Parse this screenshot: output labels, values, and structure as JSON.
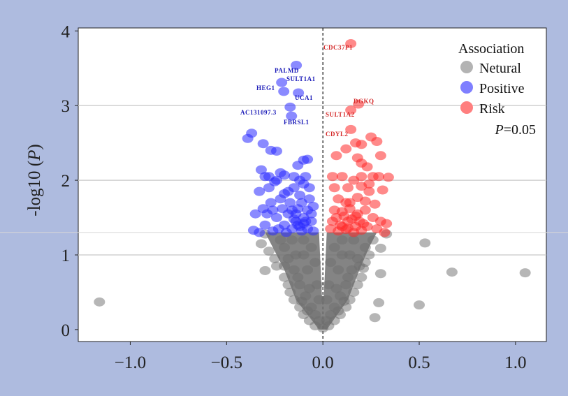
{
  "chart_data": {
    "type": "scatter",
    "title": "",
    "xlabel": "",
    "ylabel_prefix": "-log10 (",
    "ylabel_var": "P",
    "ylabel_suffix": ")",
    "xlim": [
      -1.27,
      1.16
    ],
    "ylim": [
      -0.16,
      4.04
    ],
    "xticks": [
      -1.0,
      -0.5,
      0.0,
      0.5,
      1.0
    ],
    "xtick_labels": [
      "−1.0",
      "−0.5",
      "0.0",
      "0.5",
      "1.0"
    ],
    "yticks": [
      0,
      1,
      2,
      3,
      4
    ],
    "ytick_labels": [
      "0",
      "1",
      "2",
      "3",
      "4"
    ],
    "grid": "horizontal",
    "threshold_y": 1.301,
    "vline_x": 0,
    "legend": {
      "title": "Association",
      "placement": "top-right",
      "entries": [
        {
          "name": "Netural",
          "color": "#b3b3b3"
        },
        {
          "name": "Positive",
          "color": "#7f7fff"
        },
        {
          "name": "Risk",
          "color": "#ff7f7f"
        }
      ],
      "threshold_note_var": "P",
      "threshold_note_value": "=0.05"
    },
    "colors": {
      "Netural": "#6e6e6e",
      "Positive": "#2a2aff",
      "Risk": "#ff2a2a",
      "positive_label": "#1c1cb8",
      "risk_label": "#d42a2a"
    },
    "labeled_points": [
      {
        "label": "CDC37P1",
        "x": 0.145,
        "y": 3.83,
        "group": "Risk"
      },
      {
        "label": "PALMD",
        "x": -0.138,
        "y": 3.54,
        "group": "Positive"
      },
      {
        "label": "SULT1A1",
        "x": -0.214,
        "y": 3.31,
        "group": "Positive"
      },
      {
        "label": "HEG1",
        "x": -0.203,
        "y": 3.19,
        "group": "Positive"
      },
      {
        "label": "UCA1",
        "x": -0.127,
        "y": 3.17,
        "group": "Positive"
      },
      {
        "label": "DGKQ",
        "x": 0.185,
        "y": 3.02,
        "group": "Risk"
      },
      {
        "label": "AC131097.3",
        "x": -0.17,
        "y": 2.98,
        "group": "Positive"
      },
      {
        "label": "SULT1A2",
        "x": 0.145,
        "y": 2.94,
        "group": "Risk"
      },
      {
        "label": "FBRSL1",
        "x": -0.163,
        "y": 2.86,
        "group": "Positive"
      },
      {
        "label": "CDYL2",
        "x": 0.145,
        "y": 2.68,
        "group": "Risk"
      }
    ],
    "series": [
      {
        "name": "Positive",
        "points": [
          [
            -0.37,
            2.63
          ],
          [
            -0.39,
            2.56
          ],
          [
            -0.31,
            2.49
          ],
          [
            -0.27,
            2.4
          ],
          [
            -0.24,
            2.39
          ],
          [
            -0.32,
            2.14
          ],
          [
            -0.3,
            2.05
          ],
          [
            -0.22,
            2.1
          ],
          [
            -0.2,
            2.07
          ],
          [
            -0.15,
            2.05
          ],
          [
            -0.1,
            2.27
          ],
          [
            -0.08,
            2.28
          ],
          [
            -0.13,
            2.2
          ],
          [
            -0.25,
            1.98
          ],
          [
            -0.28,
            1.9
          ],
          [
            -0.33,
            1.85
          ],
          [
            -0.35,
            1.55
          ],
          [
            -0.33,
            1.3
          ],
          [
            -0.3,
            1.4
          ],
          [
            -0.27,
            1.7
          ],
          [
            -0.22,
            1.75
          ],
          [
            -0.18,
            1.85
          ],
          [
            -0.15,
            1.9
          ],
          [
            -0.12,
            1.8
          ],
          [
            -0.1,
            1.95
          ],
          [
            -0.08,
            1.6
          ],
          [
            -0.06,
            1.45
          ],
          [
            -0.1,
            1.5
          ],
          [
            -0.14,
            1.45
          ],
          [
            -0.18,
            1.55
          ],
          [
            -0.2,
            1.4
          ],
          [
            -0.24,
            1.5
          ],
          [
            -0.26,
            1.6
          ],
          [
            -0.16,
            1.35
          ],
          [
            -0.12,
            1.38
          ],
          [
            -0.08,
            1.35
          ],
          [
            -0.05,
            1.32
          ],
          [
            -0.13,
            1.62
          ],
          [
            -0.17,
            1.7
          ],
          [
            -0.21,
            1.62
          ],
          [
            -0.29,
            1.55
          ],
          [
            -0.31,
            1.62
          ],
          [
            -0.23,
            1.35
          ],
          [
            -0.11,
            1.7
          ],
          [
            -0.07,
            1.75
          ],
          [
            -0.09,
            2.05
          ],
          [
            -0.14,
            1.55
          ],
          [
            -0.1,
            1.42
          ],
          [
            -0.06,
            1.55
          ],
          [
            -0.19,
            1.3
          ],
          [
            -0.28,
            2.05
          ],
          [
            -0.24,
            2.0
          ],
          [
            -0.12,
            2.0
          ],
          [
            -0.15,
            1.48
          ],
          [
            -0.11,
            1.32
          ],
          [
            -0.13,
            1.4
          ],
          [
            -0.09,
            1.45
          ],
          [
            -0.16,
            1.6
          ],
          [
            -0.2,
            1.82
          ],
          [
            -0.07,
            1.9
          ],
          [
            -0.05,
            1.65
          ],
          [
            -0.36,
            1.33
          ],
          [
            -0.26,
            1.32
          ]
        ]
      },
      {
        "name": "Risk",
        "points": [
          [
            0.07,
            2.33
          ],
          [
            0.12,
            2.42
          ],
          [
            0.17,
            2.5
          ],
          [
            0.2,
            2.48
          ],
          [
            0.25,
            2.58
          ],
          [
            0.28,
            2.52
          ],
          [
            0.18,
            2.3
          ],
          [
            0.2,
            2.23
          ],
          [
            0.23,
            2.18
          ],
          [
            0.3,
            2.33
          ],
          [
            0.05,
            2.05
          ],
          [
            0.1,
            2.05
          ],
          [
            0.16,
            2.0
          ],
          [
            0.2,
            2.05
          ],
          [
            0.26,
            2.05
          ],
          [
            0.29,
            2.05
          ],
          [
            0.34,
            2.04
          ],
          [
            0.06,
            1.9
          ],
          [
            0.13,
            1.9
          ],
          [
            0.2,
            1.92
          ],
          [
            0.24,
            1.85
          ],
          [
            0.31,
            1.87
          ],
          [
            0.08,
            1.75
          ],
          [
            0.12,
            1.7
          ],
          [
            0.18,
            1.77
          ],
          [
            0.22,
            1.72
          ],
          [
            0.27,
            1.68
          ],
          [
            0.06,
            1.6
          ],
          [
            0.1,
            1.58
          ],
          [
            0.14,
            1.62
          ],
          [
            0.18,
            1.55
          ],
          [
            0.22,
            1.6
          ],
          [
            0.26,
            1.5
          ],
          [
            0.05,
            1.45
          ],
          [
            0.09,
            1.4
          ],
          [
            0.13,
            1.45
          ],
          [
            0.17,
            1.38
          ],
          [
            0.21,
            1.42
          ],
          [
            0.3,
            1.45
          ],
          [
            0.33,
            1.42
          ],
          [
            0.04,
            1.35
          ],
          [
            0.08,
            1.32
          ],
          [
            0.12,
            1.34
          ],
          [
            0.16,
            1.3
          ],
          [
            0.2,
            1.33
          ],
          [
            0.28,
            1.35
          ],
          [
            0.32,
            1.3
          ],
          [
            0.14,
            1.7
          ],
          [
            0.24,
            1.95
          ],
          [
            0.11,
            1.52
          ],
          [
            0.15,
            1.48
          ],
          [
            0.19,
            1.45
          ],
          [
            0.13,
            1.36
          ],
          [
            0.17,
            1.52
          ],
          [
            0.1,
            1.38
          ],
          [
            0.23,
            1.38
          ],
          [
            0.07,
            1.5
          ]
        ]
      },
      {
        "name": "Netural",
        "points": [
          [
            -1.16,
            0.37
          ],
          [
            0.53,
            1.16
          ],
          [
            0.67,
            0.77
          ],
          [
            1.05,
            0.76
          ],
          [
            0.5,
            0.33
          ],
          [
            0.29,
            0.36
          ],
          [
            0.27,
            0.16
          ],
          [
            0.3,
            0.75
          ],
          [
            -0.3,
            0.79
          ],
          [
            0.3,
            1.09
          ],
          [
            -0.32,
            1.15
          ],
          [
            -0.3,
            1.28
          ],
          [
            0.33,
            1.28
          ],
          [
            -0.28,
            1.05
          ],
          [
            -0.25,
            0.95
          ],
          [
            -0.24,
            0.85
          ],
          [
            0.26,
            1.2
          ],
          [
            0.24,
            1.0
          ],
          [
            0.22,
            0.9
          ],
          [
            -0.22,
            1.2
          ],
          [
            -0.2,
            0.7
          ],
          [
            -0.18,
            0.6
          ],
          [
            -0.17,
            0.5
          ],
          [
            -0.15,
            0.4
          ],
          [
            -0.12,
            0.3
          ],
          [
            -0.1,
            0.2
          ],
          [
            -0.07,
            0.12
          ],
          [
            -0.04,
            0.05
          ],
          [
            0.0,
            0.02
          ],
          [
            0.03,
            0.05
          ],
          [
            0.06,
            0.12
          ],
          [
            0.09,
            0.2
          ],
          [
            0.12,
            0.3
          ],
          [
            0.14,
            0.4
          ],
          [
            0.16,
            0.5
          ],
          [
            0.18,
            0.6
          ],
          [
            0.2,
            0.7
          ],
          [
            0.21,
            0.82
          ],
          [
            0.22,
            1.1
          ],
          [
            -0.2,
            1.1
          ],
          [
            -0.18,
            0.95
          ],
          [
            -0.15,
            0.8
          ],
          [
            -0.12,
            0.6
          ],
          [
            -0.09,
            0.45
          ],
          [
            -0.06,
            0.3
          ],
          [
            -0.04,
            0.2
          ],
          [
            0.04,
            0.2
          ],
          [
            0.06,
            0.3
          ],
          [
            0.09,
            0.45
          ],
          [
            0.12,
            0.6
          ],
          [
            0.15,
            0.8
          ],
          [
            0.18,
            0.95
          ],
          [
            -0.1,
            1.2
          ],
          [
            -0.06,
            1.1
          ],
          [
            -0.04,
            0.9
          ],
          [
            -0.03,
            0.6
          ],
          [
            -0.02,
            0.4
          ],
          [
            0.02,
            0.4
          ],
          [
            0.03,
            0.6
          ],
          [
            0.04,
            0.9
          ],
          [
            0.06,
            1.1
          ],
          [
            0.1,
            1.2
          ],
          [
            -0.14,
            1.0
          ],
          [
            -0.08,
            0.8
          ],
          [
            0.08,
            0.8
          ],
          [
            0.14,
            1.0
          ],
          [
            -0.13,
            0.7
          ],
          [
            0.13,
            0.7
          ],
          [
            -0.07,
            0.55
          ],
          [
            0.07,
            0.55
          ],
          [
            -0.16,
            1.2
          ],
          [
            0.16,
            1.2
          ],
          [
            -0.1,
            1.0
          ],
          [
            0.1,
            1.0
          ],
          [
            -0.2,
            0.85
          ],
          [
            0.19,
            0.85
          ],
          [
            -0.11,
            0.38
          ],
          [
            0.11,
            0.38
          ],
          [
            -0.02,
            0.12
          ],
          [
            0.02,
            0.12
          ],
          [
            -0.08,
            0.25
          ],
          [
            0.08,
            0.25
          ]
        ]
      }
    ]
  }
}
